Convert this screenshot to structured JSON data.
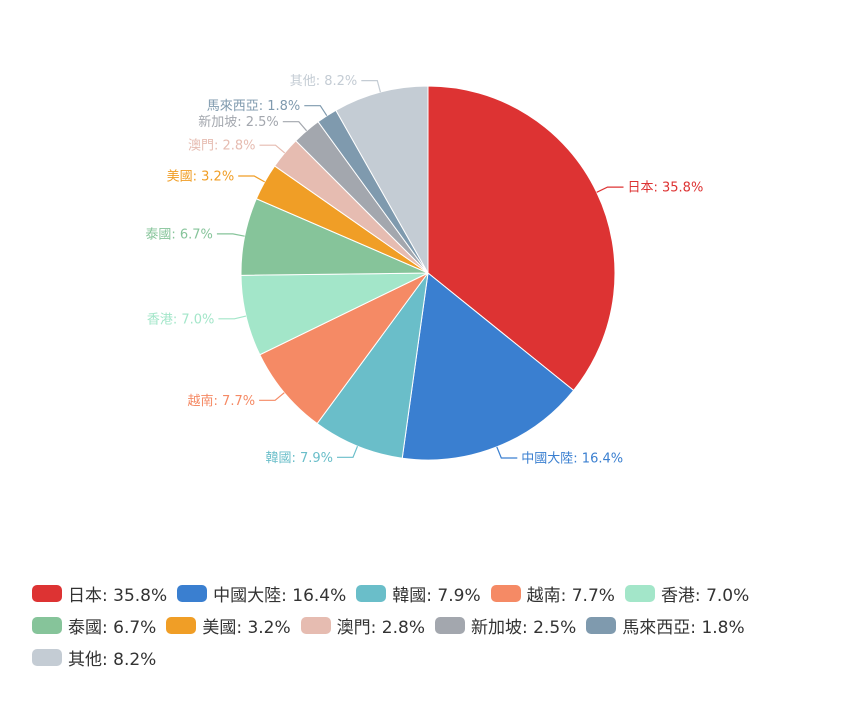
{
  "chart_data": {
    "type": "pie",
    "series": [
      {
        "name": "日本",
        "value": 35.8,
        "label": "日本: 35.8%",
        "color": "#dd3333"
      },
      {
        "name": "中國大陸",
        "value": 16.4,
        "label": "中國大陸: 16.4%",
        "color": "#3a7fd0"
      },
      {
        "name": "韓國",
        "value": 7.9,
        "label": "韓國: 7.9%",
        "color": "#6abec9"
      },
      {
        "name": "越南",
        "value": 7.7,
        "label": "越南: 7.7%",
        "color": "#f58a65"
      },
      {
        "name": "香港",
        "value": 7.0,
        "label": "香港: 7.0%",
        "color": "#a3e6c9"
      },
      {
        "name": "泰國",
        "value": 6.7,
        "label": "泰國: 6.7%",
        "color": "#86c49a"
      },
      {
        "name": "美國",
        "value": 3.2,
        "label": "美國: 3.2%",
        "color": "#f09e26"
      },
      {
        "name": "澳門",
        "value": 2.8,
        "label": "澳門: 2.8%",
        "color": "#e6bcb1"
      },
      {
        "name": "新加坡",
        "value": 2.5,
        "label": "新加坡: 2.5%",
        "color": "#a3a7ae"
      },
      {
        "name": "馬來西亞",
        "value": 1.8,
        "label": "馬來西亞: 1.8%",
        "color": "#7f9aae"
      },
      {
        "name": "其他",
        "value": 8.2,
        "label": "其他: 8.2%",
        "color": "#c4ccd4"
      }
    ],
    "legend_position": "bottom"
  }
}
